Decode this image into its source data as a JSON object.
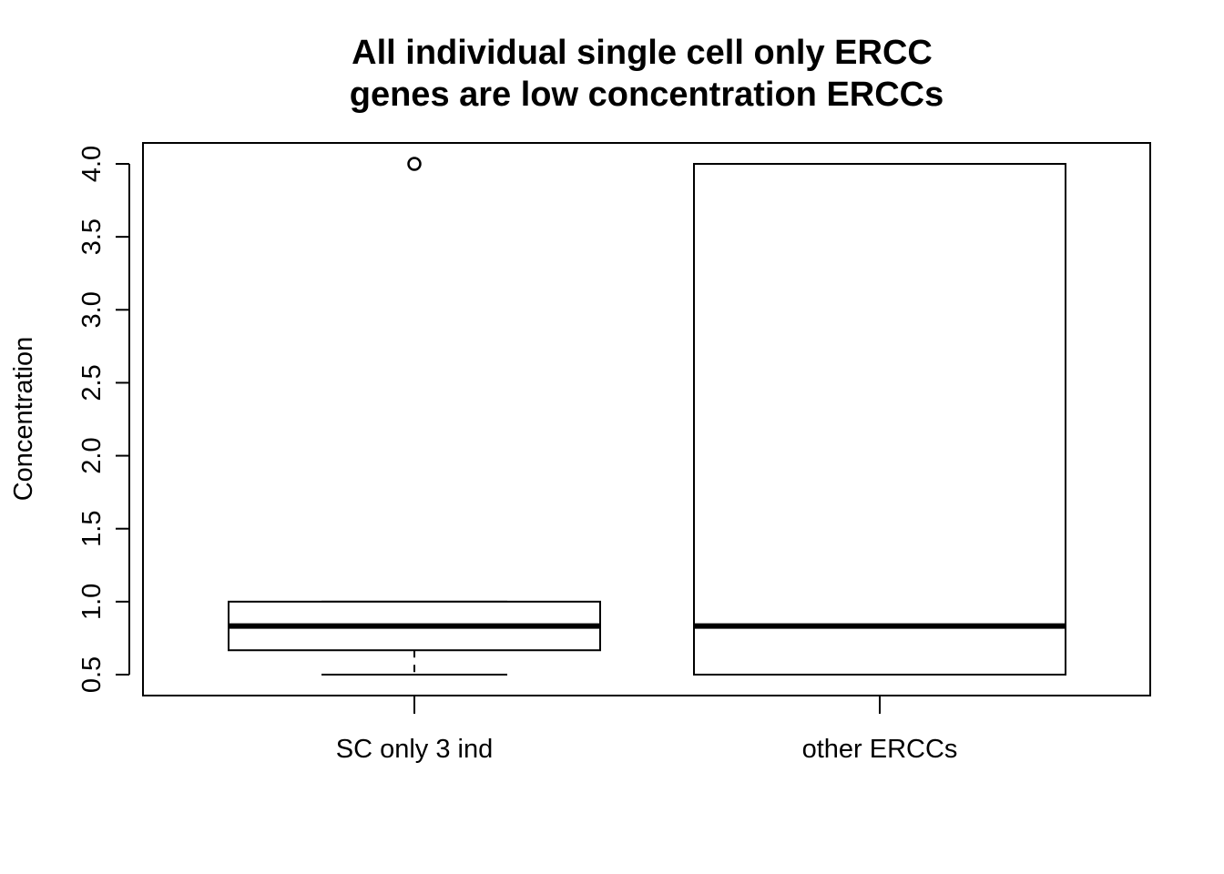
{
  "chart_data": {
    "type": "boxplot",
    "title_lines": [
      "All individual single cell only ERCC",
      "genes are low concentration ERCCs"
    ],
    "xlabel": "",
    "ylabel": "Concentration",
    "ylim": [
      0.5,
      4.0
    ],
    "yticks": [
      0.5,
      1.0,
      1.5,
      2.0,
      2.5,
      3.0,
      3.5,
      4.0
    ],
    "ytick_labels": [
      "0.5",
      "1.0",
      "1.5",
      "2.0",
      "2.5",
      "3.0",
      "3.5",
      "4.0"
    ],
    "grid": false,
    "categories": [
      "SC only 3 ind",
      "other ERCCs"
    ],
    "boxes": [
      {
        "category": "SC only 3 ind",
        "whisker_low": 0.5,
        "q1": 0.667,
        "median": 0.833,
        "q3": 1.0,
        "whisker_high": 1.0,
        "outliers": [
          4.0
        ]
      },
      {
        "category": "other ERCCs",
        "whisker_low": 0.5,
        "q1": 0.5,
        "median": 0.833,
        "q3": 4.0,
        "whisker_high": 4.0,
        "outliers": []
      }
    ]
  }
}
